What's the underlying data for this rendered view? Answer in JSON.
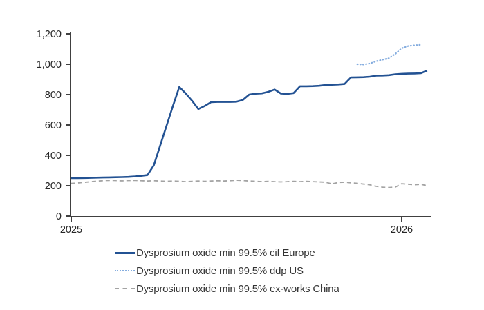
{
  "chart_data": {
    "type": "line",
    "title": "",
    "xlabel": "",
    "ylabel": "",
    "grid": false,
    "legend_position": "bottom",
    "x_axis": {
      "tick_labels": [
        "2025",
        "2026"
      ],
      "tick_week_positions": [
        0,
        52
      ],
      "range_weeks": [
        0,
        56.5
      ],
      "note": "x is time; one data point per week starting first week of 2025"
    },
    "y_axis": {
      "range": [
        0,
        1200
      ],
      "tick_interval": 200,
      "tick_labels": [
        "0",
        "200",
        "400",
        "600",
        "800",
        "1,000",
        "1,200"
      ]
    },
    "series": [
      {
        "name": "Dysprosium oxide min 99.5% cif Europe",
        "id": "cif-europe",
        "color": "#235293",
        "style": "solid",
        "start_week": 0,
        "values": [
          250,
          250,
          251,
          252,
          253,
          254,
          255,
          256,
          257,
          258,
          261,
          265,
          270,
          335,
          465,
          595,
          725,
          850,
          808,
          760,
          705,
          725,
          750,
          752,
          752,
          752,
          753,
          765,
          800,
          806,
          808,
          818,
          833,
          807,
          805,
          810,
          855,
          855,
          856,
          858,
          863,
          865,
          867,
          870,
          913,
          914,
          915,
          918,
          925,
          926,
          928,
          934,
          937,
          938,
          939,
          941,
          958
        ]
      },
      {
        "name": "Dysprosium oxide min 99.5% ddp US",
        "id": "ddp-us",
        "color": "#85ADDF",
        "style": "dotted",
        "start_week": 45,
        "values": [
          1000,
          998,
          1005,
          1020,
          1030,
          1040,
          1068,
          1105,
          1120,
          1125,
          1128
        ]
      },
      {
        "name": "Dysprosium oxide min 99.5% ex-works China",
        "id": "ex-works-china",
        "color": "#A3A3A3",
        "style": "dashed",
        "start_week": 0,
        "values": [
          215,
          218,
          222,
          226,
          230,
          233,
          235,
          234,
          232,
          234,
          235,
          233,
          231,
          233,
          231,
          229,
          231,
          229,
          227,
          229,
          231,
          229,
          231,
          233,
          231,
          233,
          236,
          234,
          231,
          229,
          227,
          229,
          227,
          225,
          227,
          229,
          227,
          229,
          227,
          225,
          223,
          212,
          221,
          223,
          219,
          216,
          211,
          206,
          196,
          190,
          188,
          191,
          213,
          210,
          206,
          209,
          200
        ]
      }
    ],
    "axis_color": "#404040",
    "tick_label_color": "#262626"
  }
}
